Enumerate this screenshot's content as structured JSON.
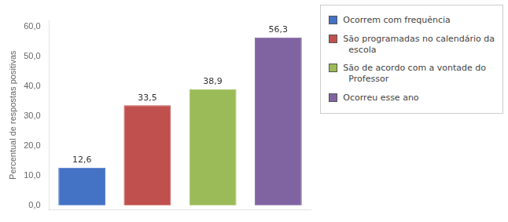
{
  "chart_data": {
    "type": "bar",
    "categories": [
      "Ocorrem com frequência",
      "São programadas no calendário da\n  escola",
      "São de acordo com a vontade do\n  Professor",
      "Ocorreu esse ano"
    ],
    "values": [
      12.6,
      33.5,
      38.9,
      56.3
    ],
    "value_labels": [
      "12,6",
      "33,5",
      "38,9",
      "56,3"
    ],
    "colors": [
      "#4472C4",
      "#C0504D",
      "#9BBB59",
      "#8064A2"
    ],
    "y_label": "Percentual de respostas positivas",
    "ylim": [
      -1.5,
      62
    ],
    "yticks": [
      {
        "value": 0.0,
        "label": "0,0"
      },
      {
        "value": 10.0,
        "label": "10,0"
      },
      {
        "value": 20.0,
        "label": "20,0"
      },
      {
        "value": 30.0,
        "label": "30,0"
      },
      {
        "value": 40.0,
        "label": "40,0"
      },
      {
        "value": 50.0,
        "label": "50,0"
      },
      {
        "value": 60.0,
        "label": "60,0"
      }
    ],
    "grid": false,
    "legend": "right",
    "data_labels": true,
    "tick_labels": "y"
  }
}
